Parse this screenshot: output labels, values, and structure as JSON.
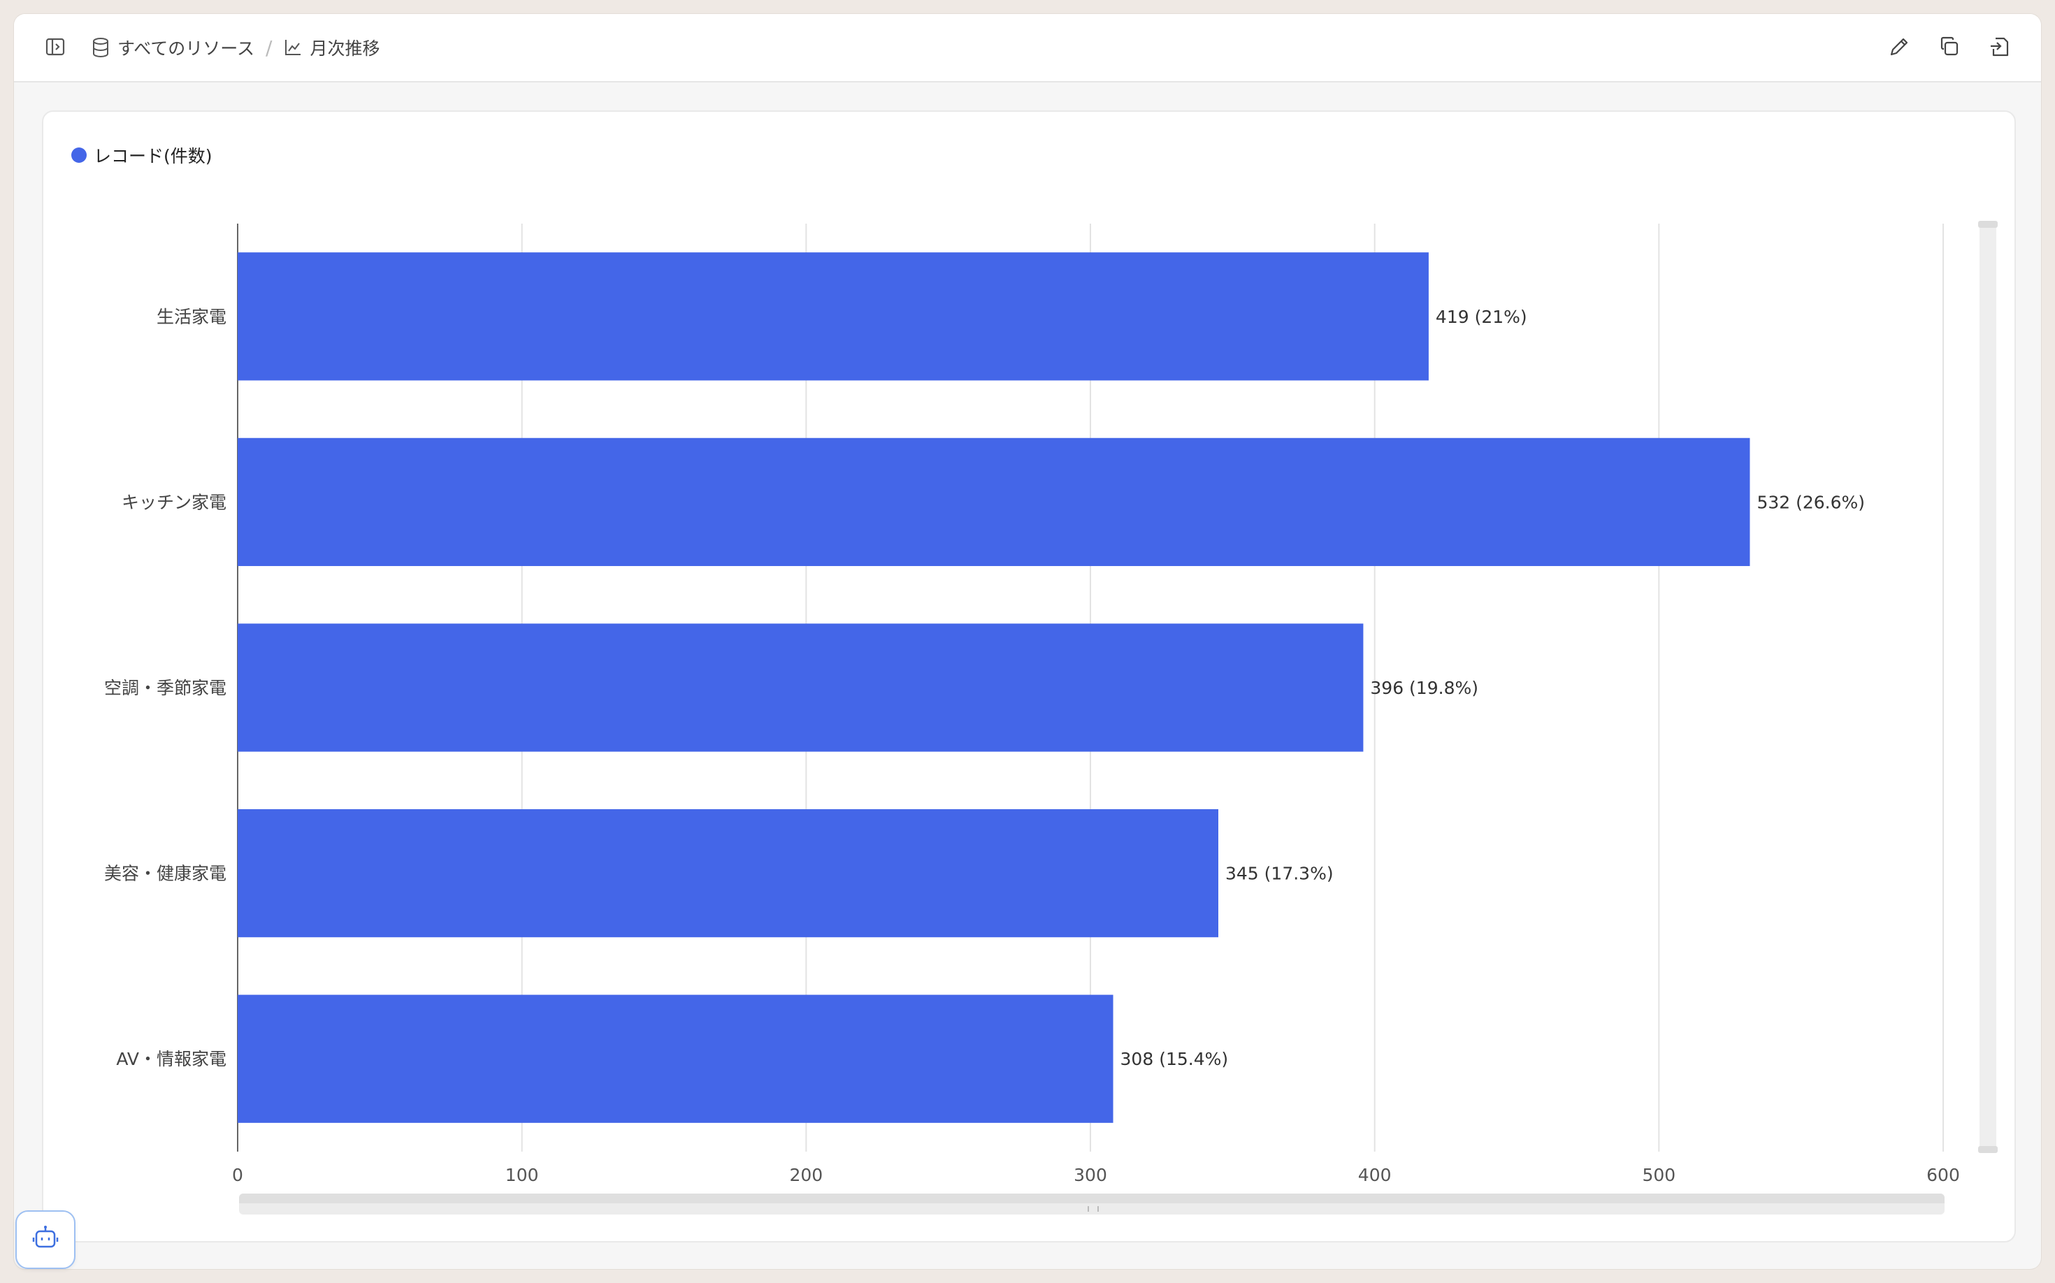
{
  "breadcrumb": {
    "root_label": "すべてのリソース",
    "separator": "/",
    "current_label": "月次推移"
  },
  "icons": {
    "sidebar_toggle": "sidebar-toggle-icon",
    "database": "database-icon",
    "chart": "line-chart-icon",
    "edit": "pencil-icon",
    "duplicate": "copy-icon",
    "export": "export-icon",
    "assistant": "robot-icon"
  },
  "colors": {
    "bar": "#4466e8",
    "accent_border": "#9ec0f2"
  },
  "legend": {
    "label": "レコード(件数)"
  },
  "chart_data": {
    "type": "bar",
    "orientation": "horizontal",
    "categories": [
      "生活家電",
      "キッチン家電",
      "空調・季節家電",
      "美容・健康家電",
      "AV・情報家電"
    ],
    "series": [
      {
        "name": "レコード(件数)",
        "values": [
          419,
          532,
          396,
          345,
          308
        ]
      }
    ],
    "data_labels": [
      "419 (21%)",
      "532 (26.6%)",
      "396 (19.8%)",
      "345 (17.3%)",
      "308 (15.4%)"
    ],
    "x_ticks": [
      "0",
      "100",
      "200",
      "300",
      "400",
      "500",
      "600"
    ],
    "xlim": [
      0,
      600
    ],
    "grid": true,
    "legend_position": "top-left"
  }
}
